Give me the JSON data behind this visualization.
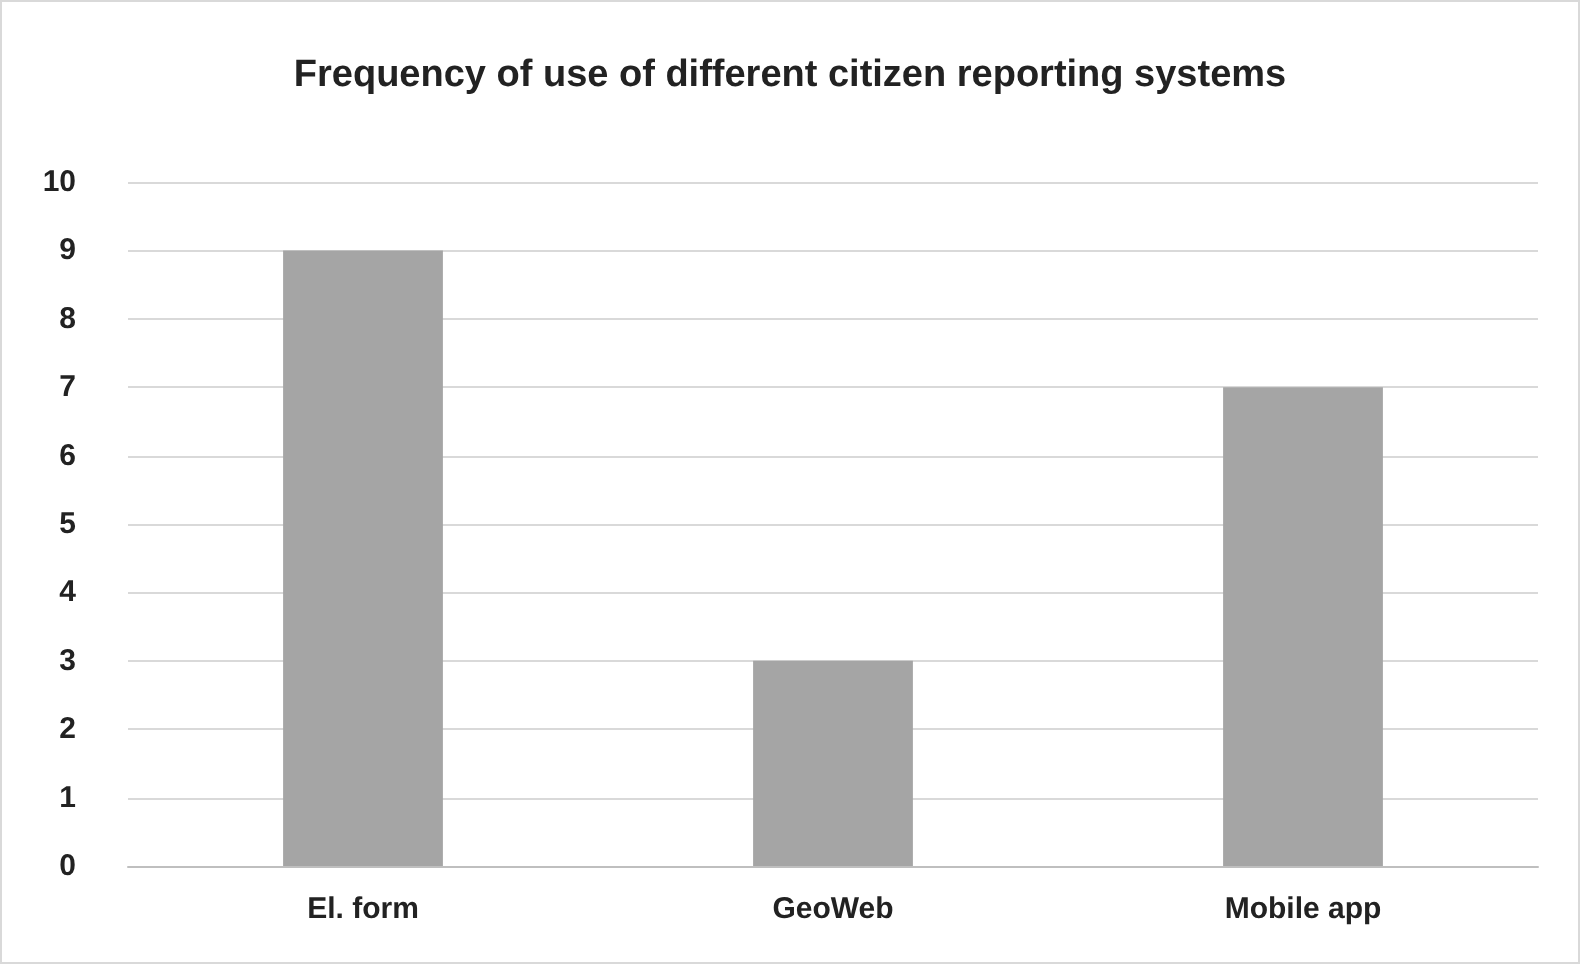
{
  "chart_data": {
    "type": "bar",
    "title": "Frequency of use of different citizen reporting systems",
    "categories": [
      "El. form",
      "GeoWeb",
      "Mobile app"
    ],
    "values": [
      9,
      3,
      7
    ],
    "color": "#a5a5a5",
    "ylim": [
      0,
      10
    ],
    "yticks": [
      0,
      1,
      2,
      3,
      4,
      5,
      6,
      7,
      8,
      9,
      10
    ],
    "grid": "y"
  }
}
